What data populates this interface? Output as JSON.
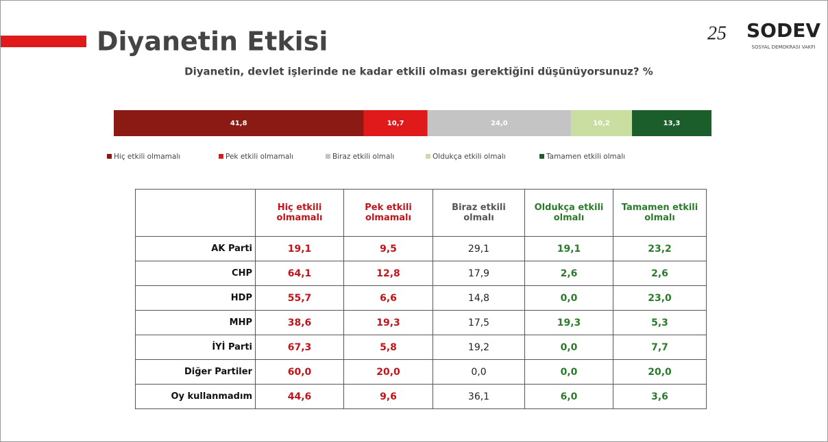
{
  "header": {
    "title": "Diyanetin Etkisi",
    "subtitle": "Diyanetin, devlet işlerinde ne kadar etkili olması gerektiğini düşünüyorsunuz? %"
  },
  "logo": {
    "number": "25",
    "name": "SODEV",
    "tagline": "SOSYAL DEMOKRASI VAKFI"
  },
  "chart_data": {
    "type": "stacked_bar",
    "orientation": "horizontal",
    "categories": [
      null
    ],
    "xlim": [
      0,
      100
    ],
    "series": [
      {
        "name": "Hiç etkili olmamalı",
        "color": "#8b1a14",
        "values": [
          41.8
        ],
        "value_labels": [
          "41,8"
        ]
      },
      {
        "name": "Pek etkili olmamalı",
        "color": "#e0191a",
        "values": [
          10.7
        ],
        "value_labels": [
          "10,7"
        ]
      },
      {
        "name": "Biraz etkili olmalı",
        "color": "#c4c4c4",
        "values": [
          24.0
        ],
        "value_labels": [
          "24,0"
        ]
      },
      {
        "name": "Oldukça etkili olmalı",
        "color": "#c9dea0",
        "values": [
          10.2
        ],
        "value_labels": [
          "10,2"
        ]
      },
      {
        "name": "Tamamen etkili olmalı",
        "color": "#1b5e2c",
        "values": [
          13.3
        ],
        "value_labels": [
          "13,3"
        ]
      }
    ],
    "legend": "bottom"
  },
  "table": {
    "columns": [
      "Hiç etkili olmamalı",
      "Pek etkili olmamalı",
      "Biraz etkili olmalı",
      "Oldukça etkili olmalı",
      "Tamamen etkili olmalı"
    ],
    "rows": [
      [
        "AK Parti",
        "19,1",
        "9,5",
        "29,1",
        "19,1",
        "23,2"
      ],
      [
        "CHP",
        "64,1",
        "12,8",
        "17,9",
        "2,6",
        "2,6"
      ],
      [
        "HDP",
        "55,7",
        "6,6",
        "14,8",
        "0,0",
        "23,0"
      ],
      [
        "MHP",
        "38,6",
        "19,3",
        "17,5",
        "19,3",
        "5,3"
      ],
      [
        "İYİ Parti",
        "67,3",
        "5,8",
        "19,2",
        "0,0",
        "7,7"
      ],
      [
        "Diğer Partiler",
        "60,0",
        "20,0",
        "0,0",
        "0,0",
        "20,0"
      ],
      [
        "Oy kullanmadım",
        "44,6",
        "9,6",
        "36,1",
        "6,0",
        "3,6"
      ]
    ]
  }
}
